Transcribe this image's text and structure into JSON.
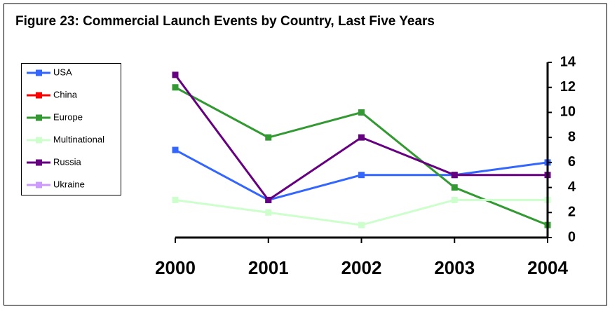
{
  "chart_data": {
    "type": "line",
    "title": "Figure 23: Commercial Launch Events by Country, Last Five Years",
    "categories": [
      "2000",
      "2001",
      "2002",
      "2003",
      "2004"
    ],
    "series": [
      {
        "name": "USA",
        "color": "#3366ff",
        "values": [
          7,
          3,
          5,
          5,
          6
        ]
      },
      {
        "name": "China",
        "color": "#ff0000",
        "values": [
          null,
          null,
          null,
          null,
          null
        ]
      },
      {
        "name": "Europe",
        "color": "#339933",
        "values": [
          12,
          8,
          10,
          4,
          1
        ]
      },
      {
        "name": "Multinational",
        "color": "#ccffcc",
        "values": [
          3,
          2,
          1,
          3,
          3
        ]
      },
      {
        "name": "Russia",
        "color": "#660080",
        "values": [
          13,
          3,
          8,
          5,
          5
        ]
      },
      {
        "name": "Ukraine",
        "color": "#cc99ff",
        "values": [
          null,
          null,
          null,
          null,
          null
        ]
      }
    ],
    "ylim": [
      0,
      14
    ],
    "yticks": [
      0,
      2,
      4,
      6,
      8,
      10,
      12,
      14
    ],
    "y_axis_side": "right",
    "legend": "left"
  }
}
